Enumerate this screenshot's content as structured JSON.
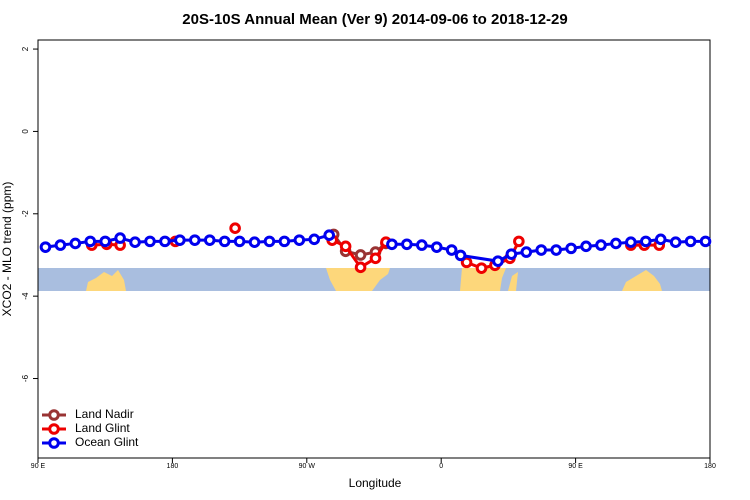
{
  "chart_data": {
    "type": "line",
    "title": "20S-10S Annual Mean (Ver 9)   2014-09-06 to 2018-12-29",
    "x_label": "Longitude",
    "y_label": "XCO2 - MLO trend (ppm)",
    "xlim": [
      90,
      540
    ],
    "xticks": [
      {
        "value": 90,
        "label": "90 E"
      },
      180,
      {
        "value": 270,
        "label": "90 W"
      },
      {
        "value": 360,
        "label": "0"
      },
      {
        "value": 450,
        "label": "90 E"
      },
      {
        "value": 540,
        "label": "180"
      }
    ],
    "ylim": [
      -7.93,
      2.22
    ],
    "yticks": [
      2,
      0,
      -2,
      -4,
      -6
    ],
    "legend": "bottom-left",
    "series": [
      {
        "name": "Land Nadir",
        "color": "#993333",
        "x": [
          288,
          296,
          306,
          316,
          323
        ],
        "values": [
          -2.5,
          -2.91,
          -3.0,
          -2.93,
          -2.72
        ]
      },
      {
        "name": "Land Glint",
        "color": "#ee0000",
        "x": [
          126,
          136,
          145,
          182,
          222,
          287,
          296,
          306,
          316,
          323,
          377,
          387,
          396,
          406,
          412,
          487,
          496,
          506
        ],
        "values": [
          -2.76,
          -2.74,
          -2.76,
          -2.67,
          -2.35,
          -2.64,
          -2.79,
          -3.3,
          -3.08,
          -2.69,
          -3.18,
          -3.32,
          -3.25,
          -3.08,
          -2.67,
          -2.76,
          -2.76,
          -2.76
        ]
      },
      {
        "name": "Ocean Glint",
        "color": "#0000ee",
        "x": [
          95,
          105,
          115,
          125,
          135,
          145,
          155,
          165,
          175,
          185,
          195,
          205,
          215,
          225,
          235,
          245,
          255,
          265,
          275,
          285,
          327,
          337,
          347,
          357,
          367,
          373,
          398,
          407,
          417,
          427,
          437,
          447,
          457,
          467,
          477,
          487,
          497,
          507,
          517,
          527,
          537
        ],
        "values": [
          -2.81,
          -2.76,
          -2.72,
          -2.67,
          -2.67,
          -2.59,
          -2.69,
          -2.67,
          -2.67,
          -2.64,
          -2.64,
          -2.64,
          -2.67,
          -2.67,
          -2.69,
          -2.67,
          -2.67,
          -2.64,
          -2.62,
          -2.52,
          -2.74,
          -2.74,
          -2.76,
          -2.81,
          -2.88,
          -3.01,
          -3.15,
          -2.98,
          -2.93,
          -2.88,
          -2.88,
          -2.84,
          -2.79,
          -2.76,
          -2.72,
          -2.69,
          -2.67,
          -2.62,
          -2.69,
          -2.67,
          -2.67
        ]
      }
    ]
  }
}
